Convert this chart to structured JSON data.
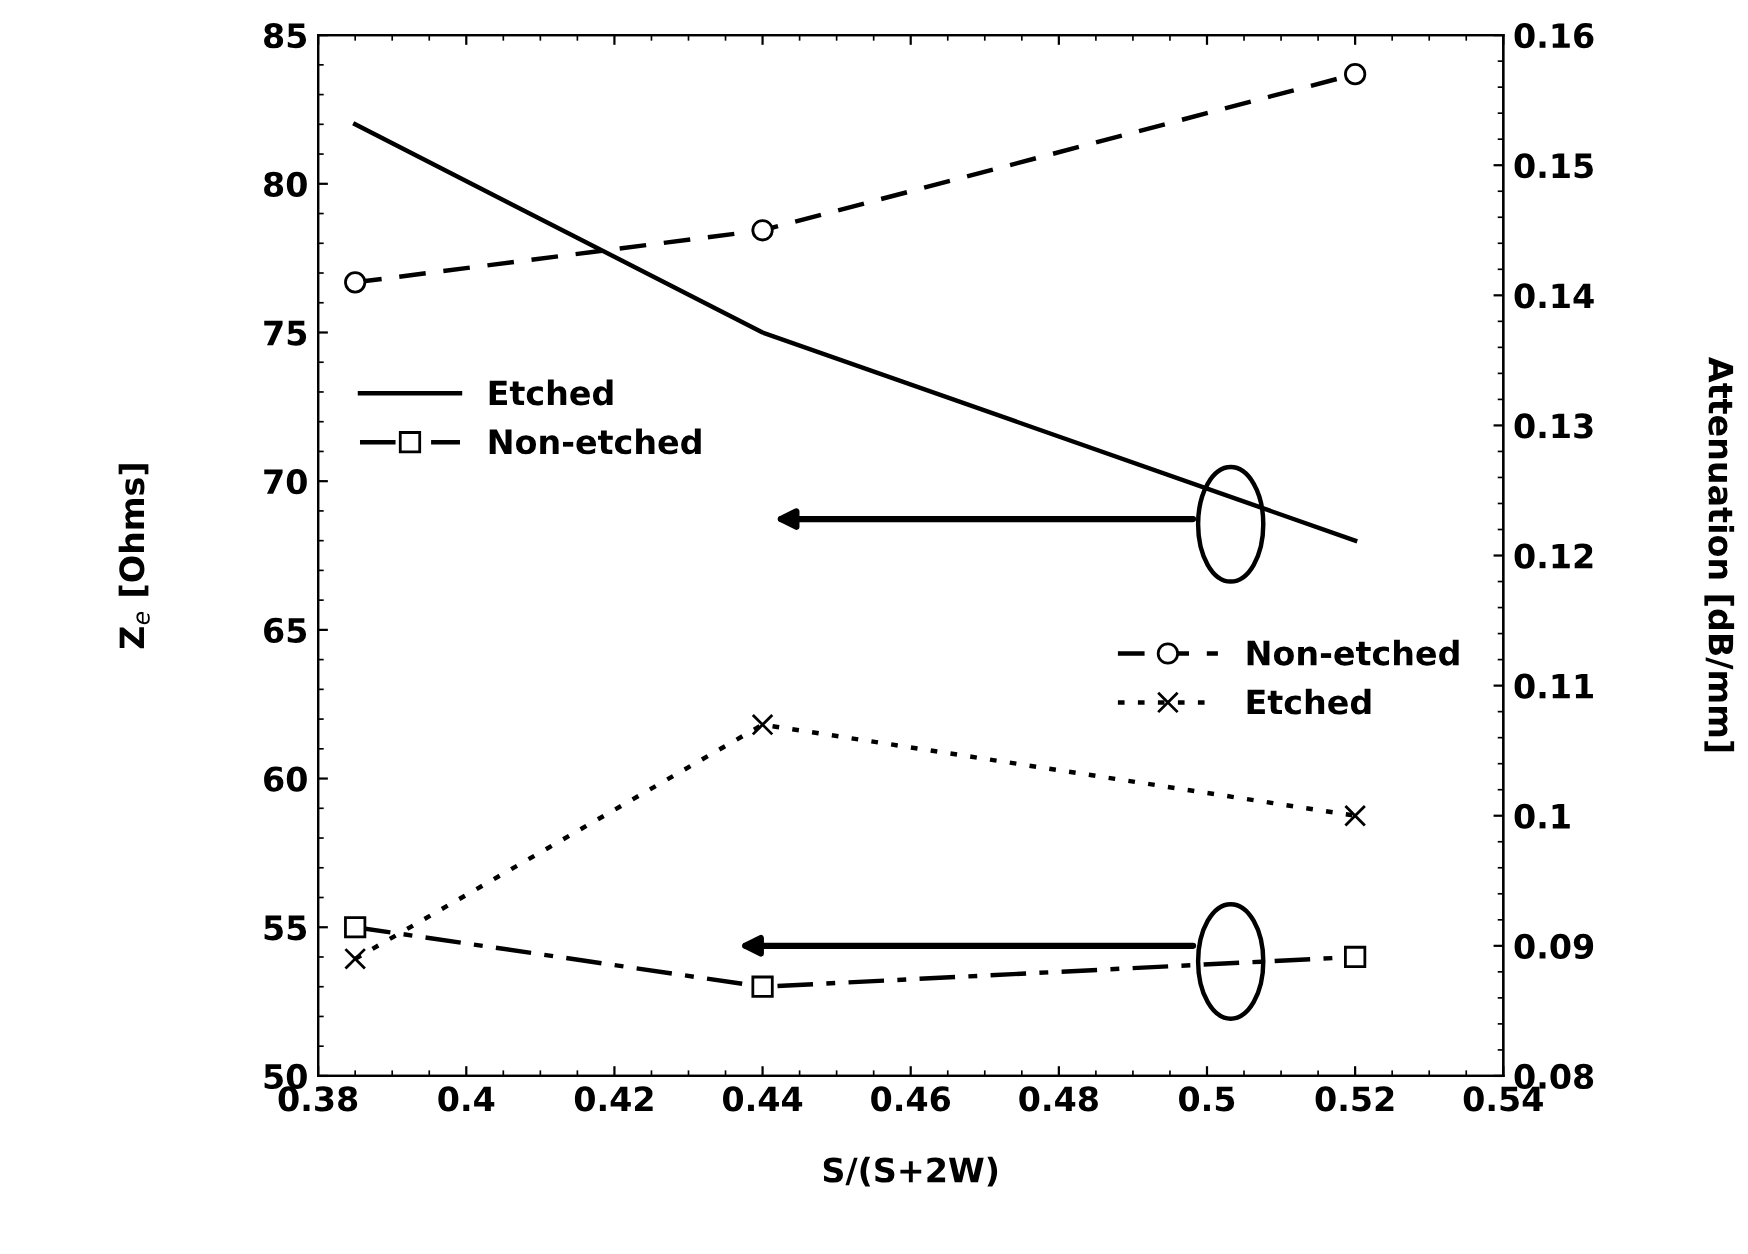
{
  "chart_data": {
    "type": "line",
    "xlabel": "S/(S+2W)",
    "ylabel": "Z$_{e}$ [Ohms]",
    "y2label": "Attenuation [dB/mm]",
    "xlim": [
      0.38,
      0.54
    ],
    "xticks": [
      0.38,
      0.4,
      0.42,
      0.44,
      0.46,
      0.48,
      0.5,
      0.52,
      0.54
    ],
    "ylim": [
      50,
      85
    ],
    "yticks": [
      50,
      55,
      60,
      65,
      70,
      75,
      80,
      85
    ],
    "y2lim": [
      0.08,
      0.16
    ],
    "y2ticks": [
      0.08,
      0.09,
      0.1,
      0.11,
      0.12,
      0.13,
      0.14,
      0.15,
      0.16
    ],
    "x": [
      0.385,
      0.44,
      0.52
    ],
    "grid": false,
    "legend": "left",
    "series": [
      {
        "name": "Etched",
        "color": "#000000",
        "values": [
          82,
          75,
          68
        ],
        "line_style": "solid",
        "marker": "none"
      },
      {
        "name": "Non-etched",
        "color": "#000000",
        "values": [
          55,
          53,
          54
        ],
        "line_style": "dashdot",
        "marker": "square"
      },
      {
        "name": "Non-etched",
        "color": "#000000",
        "values": [
          0.141,
          0.145,
          0.157
        ],
        "line_style": "dashed",
        "marker": "circle",
        "axis": "y2"
      },
      {
        "name": "Etched",
        "color": "#000000",
        "values": [
          0.089,
          0.107,
          0.1
        ],
        "line_style": "dotted",
        "marker": "cross",
        "axis": "y2"
      }
    ]
  }
}
